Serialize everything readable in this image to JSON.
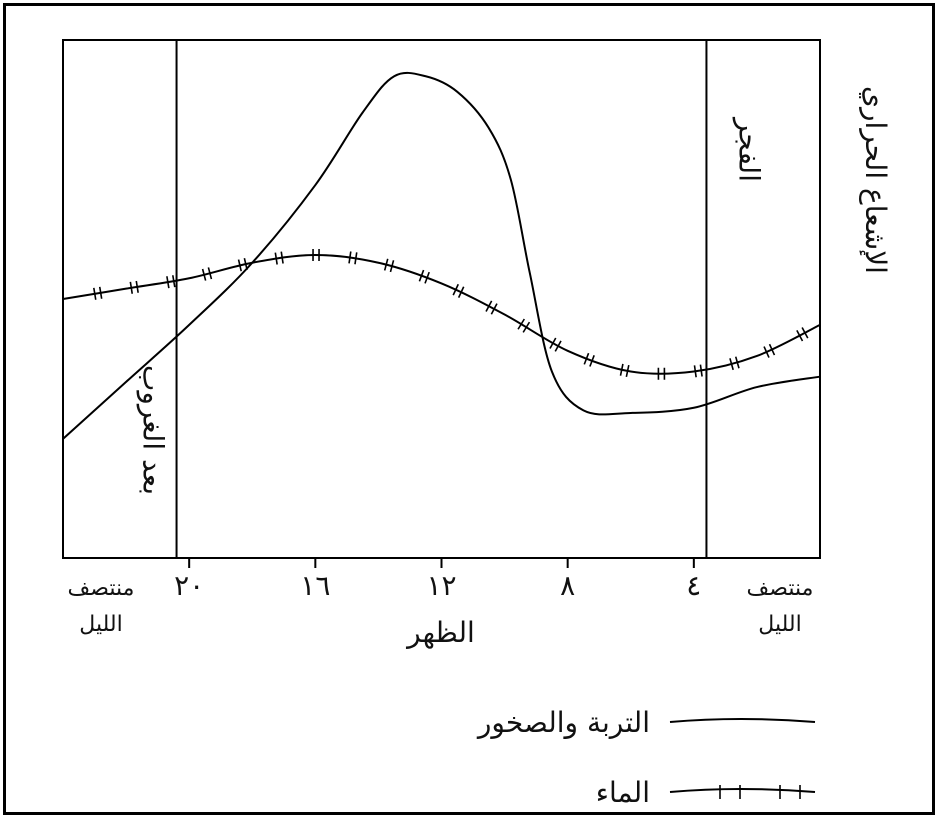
{
  "chart_data": {
    "type": "line",
    "ylabel": "الإشعاع الحراري",
    "x_axis": {
      "direction": "right-to-left",
      "range_hours": [
        0,
        24
      ],
      "ticks": [
        {
          "x": 0,
          "label": "منتصف\nالليل"
        },
        {
          "x": 4,
          "label": "٤"
        },
        {
          "x": 8,
          "label": "٨"
        },
        {
          "x": 12,
          "label": "١٢"
        },
        {
          "x": 16,
          "label": "١٦"
        },
        {
          "x": 20,
          "label": "٢٠"
        },
        {
          "x": 24,
          "label": "منتصف\nالليل"
        }
      ],
      "center_label": "الظهر"
    },
    "ylim": [
      0,
      10
    ],
    "vertical_markers": [
      {
        "x": 3.6,
        "label": "الفجر"
      },
      {
        "x": 20.4,
        "label": "بعد الغروب"
      }
    ],
    "series": [
      {
        "name": "التربة والصخور",
        "style": "solid",
        "x": [
          0,
          2,
          4,
          6,
          7.5,
          8.5,
          9.2,
          9.8,
          10.5,
          11.5,
          12.5,
          13.5,
          14.5,
          16,
          18,
          20,
          22,
          24
        ],
        "y": [
          3.5,
          3.3,
          2.9,
          2.8,
          2.85,
          3.6,
          5.5,
          7.3,
          8.3,
          9.0,
          9.3,
          9.3,
          8.6,
          7.2,
          5.7,
          4.5,
          3.4,
          2.3
        ]
      },
      {
        "name": "الماء",
        "style": "tick-marked",
        "x": [
          0,
          2,
          4,
          6,
          8,
          10,
          12,
          14,
          16,
          18,
          20,
          22,
          24
        ],
        "y": [
          4.5,
          3.9,
          3.6,
          3.6,
          4.0,
          4.7,
          5.3,
          5.7,
          5.85,
          5.7,
          5.4,
          5.2,
          5.0
        ]
      }
    ],
    "legend": {
      "position": "bottom-center",
      "entries": [
        {
          "label": "التربة والصخور",
          "style": "solid"
        },
        {
          "label": "الماء",
          "style": "tick-marked"
        }
      ]
    }
  }
}
